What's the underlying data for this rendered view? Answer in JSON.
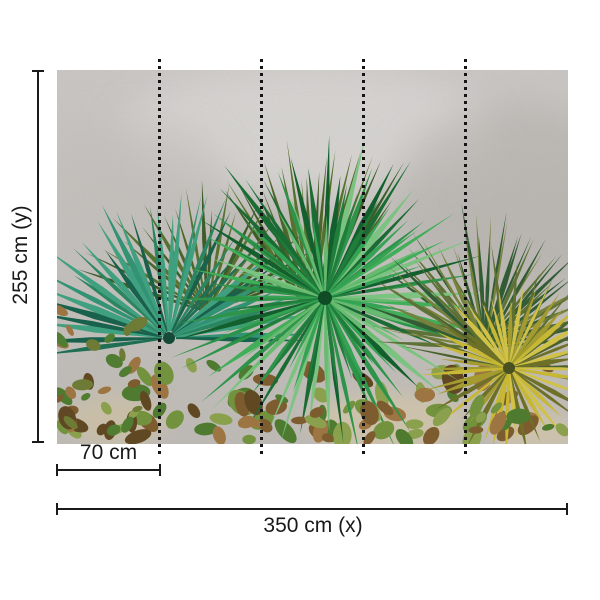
{
  "diagram": {
    "height_label": "255 cm (y)",
    "panel_width_label": "70 cm",
    "total_width_label": "350 cm (x)",
    "line_color": "#1a1a1a",
    "cut_line_color": "#141414",
    "background_color": "#ffffff"
  },
  "photo": {
    "description": "Green, teal and yellow fan palm leaves against a mottled gray concrete wall with low foliage at the bottom",
    "palette": {
      "wall_top": "#cbc8c5",
      "wall_bottom": "#bfbbb7",
      "wall_light": "#dad8d5",
      "wall_dark": "#b3afaa",
      "sand": "#cdc3ac",
      "teal_fan": [
        "#2f9273",
        "#1d6e52",
        "#3da07f",
        "#15604a",
        "#28855f"
      ],
      "green_fan": [
        "#2a9447",
        "#176b31",
        "#3fae57",
        "#0f5e2b",
        "#7ac47f"
      ],
      "green_fan_inner": [
        "#33a352",
        "#1d7c39",
        "#66bb6f"
      ],
      "back_olive": [
        "#4b6428",
        "#3c5a26",
        "#57702c"
      ],
      "olive_fan": [
        "#75813a",
        "#2f5a33",
        "#5c7034"
      ],
      "yellow_fan": [
        "#c8b832",
        "#a39b2d",
        "#6c6f24",
        "#d2c245"
      ],
      "yellow_dark_rays": [
        "#49602b",
        "#5d6e2c"
      ],
      "foliage": [
        "#4c7a2d",
        "#71923c",
        "#8aa04b",
        "#7c5a2c",
        "#9c7440",
        "#5e4620"
      ],
      "vines": [
        "#7c5a2c",
        "#9c7440",
        "#6d7a33",
        "#4e7c2f"
      ],
      "hub_dark_green": "#0c4a22",
      "hub_dark_teal": "#124736",
      "hub_dark_yellow": "#474f1e"
    }
  }
}
